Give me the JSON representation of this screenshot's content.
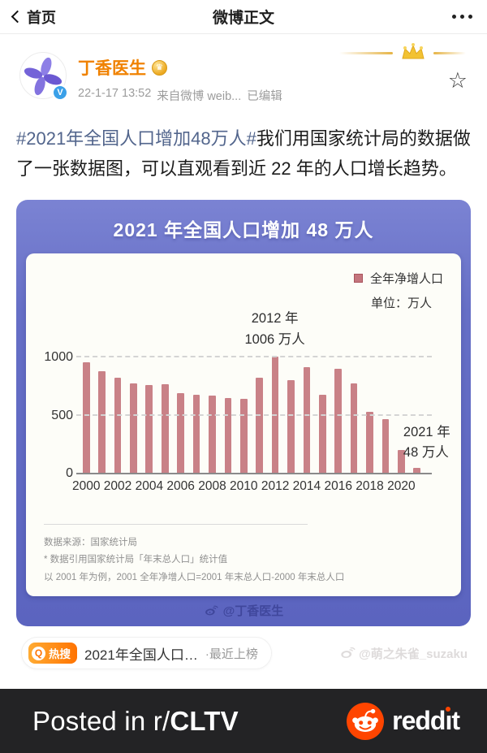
{
  "nav": {
    "back_label": "首页",
    "title": "微博正文"
  },
  "icons": {
    "star": "☆",
    "v_badge": "V",
    "gold_crown": "♛",
    "hot_q": "Q"
  },
  "post": {
    "author": "丁香医生",
    "timestamp": "22-1-17 13:52",
    "source": "来自微博 weib...",
    "edited": "已编辑",
    "body_hashtag": "#2021年全国人口增加48万人#",
    "body_rest": "我们用国家统计局的数据做了一张数据图，可以直观看到近 22 年的人口增长趋势。"
  },
  "chart_card": {
    "unit_label": "单位：万人",
    "footer_source": "数据来源：国家统计局",
    "footer_note1": "* 数据引用国家统计局「年末总人口」统计值",
    "footer_note2": "以 2001 年为例，2001 全年净增人口=2001 年末总人口-2000 年末总人口",
    "watermark": "@丁香医生"
  },
  "chart_data": {
    "type": "bar",
    "title": "2021 年全国人口增加 48 万人",
    "legend": [
      "全年净增人口"
    ],
    "unit": "万人",
    "legend_position": "top-right",
    "grid": "dashed-horizontal",
    "categories": [
      "2000",
      "2001",
      "2002",
      "2003",
      "2004",
      "2005",
      "2006",
      "2007",
      "2008",
      "2009",
      "2010",
      "2011",
      "2012",
      "2013",
      "2014",
      "2015",
      "2016",
      "2017",
      "2018",
      "2019",
      "2020",
      "2021"
    ],
    "values": [
      957,
      884,
      826,
      774,
      761,
      768,
      692,
      681,
      673,
      648,
      641,
      825,
      1006,
      804,
      920,
      680,
      906,
      779,
      530,
      467,
      204,
      48
    ],
    "x_tick_labels": [
      "2000",
      "2002",
      "2004",
      "2006",
      "2008",
      "2010",
      "2012",
      "2014",
      "2016",
      "2018",
      "2020"
    ],
    "y_ticks": [
      0,
      500,
      1000
    ],
    "ylim": [
      0,
      1050
    ],
    "bar_color": "#c98187",
    "annotations": [
      {
        "category": "2012",
        "lines": [
          "2012 年",
          "1006 万人"
        ],
        "placement": "above"
      },
      {
        "category": "2021",
        "lines": [
          "2021 年",
          "48 万人"
        ],
        "placement": "side"
      }
    ]
  },
  "hot_search": {
    "badge": "热搜",
    "title": "2021年全国人口…",
    "suffix": "·最近上榜"
  },
  "watermark_user": "@萌之朱雀_suzaku",
  "reddit_bar": {
    "posted_prefix": "Posted in r/",
    "subreddit": "CLTV",
    "brand": "reddit"
  },
  "colors": {
    "frame_blue": "#646cc4",
    "bar_pink": "#c98187",
    "weibo_orange": "#f08200",
    "hashtag_blue": "#52658c",
    "reddit_orange": "#ff4500",
    "reddit_bar_bg": "#232325"
  }
}
